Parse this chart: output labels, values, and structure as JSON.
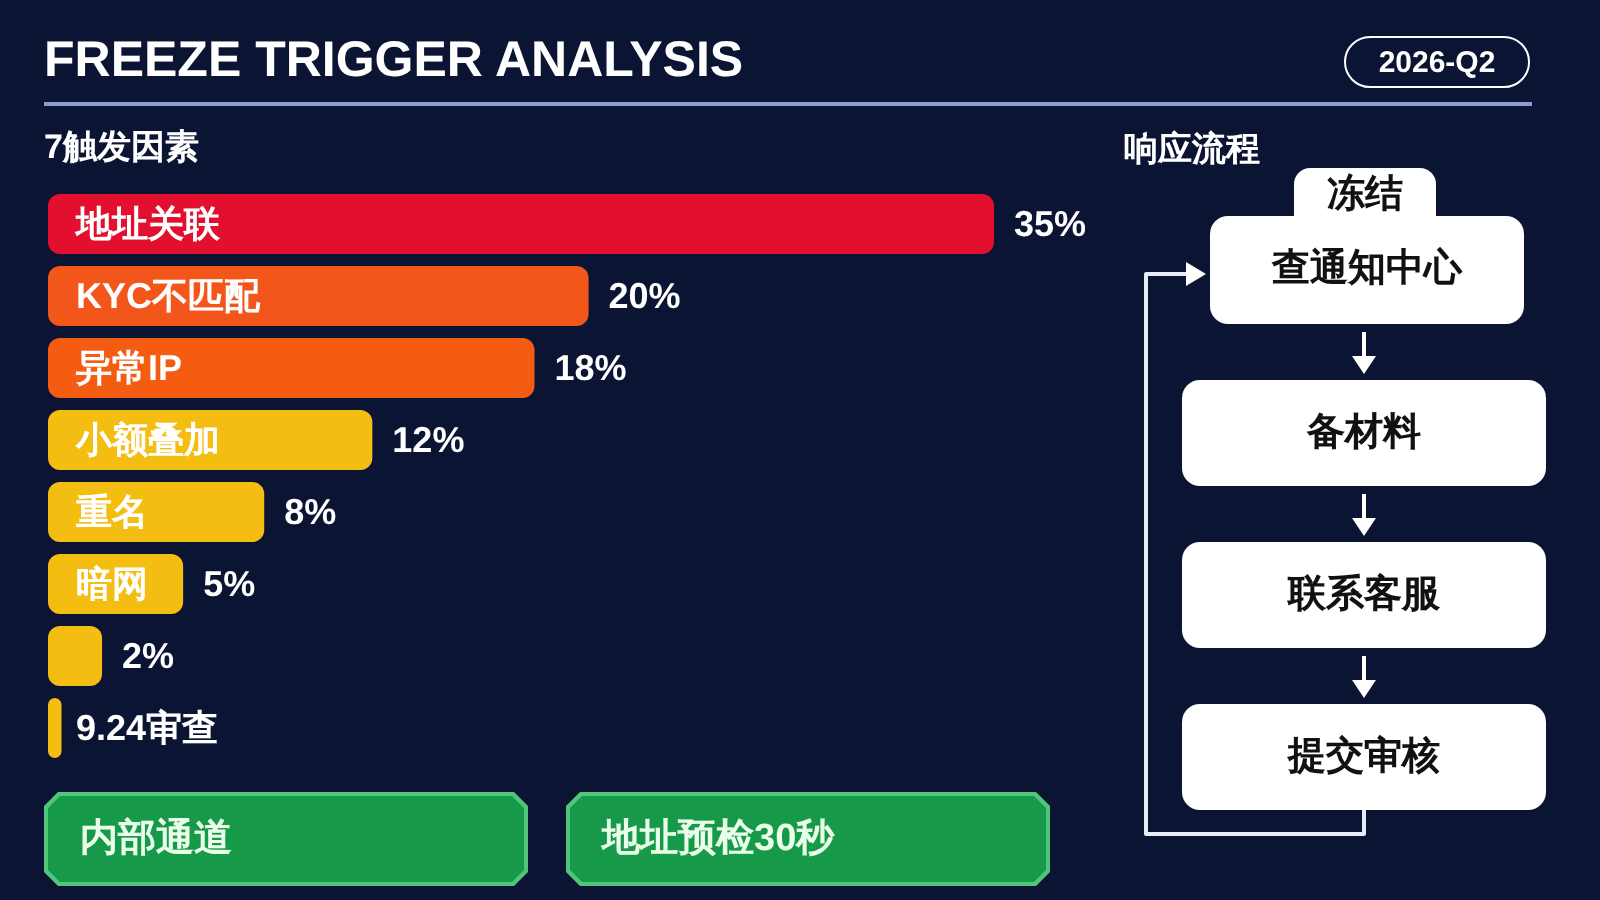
{
  "chart_data": [
    {
      "type": "bar",
      "orientation": "horizontal",
      "title": "FREEZE TRIGGER ANALYSIS",
      "ylabel": "7触发因素",
      "categories": [
        "地址关联",
        "KYC不匹配",
        "异常IP",
        "小额叠加",
        "重名",
        "暗网",
        null,
        "9.24审查"
      ],
      "values": [
        35,
        20,
        18,
        12,
        8,
        5,
        2,
        0.5
      ],
      "value_labels": [
        "35%",
        "20%",
        "18%",
        "12%",
        "8%",
        "5%",
        "2%",
        null
      ],
      "colors": [
        "#e2102e",
        "#f2561a",
        "#f45c12",
        "#f3bd12",
        "#f3bd12",
        "#f3bd12",
        "#f3bd12",
        "#f3bd12"
      ],
      "tick_labels": "y",
      "annotations": [
        "内部通道",
        "地址预检30秒"
      ]
    },
    {
      "type": "other",
      "title": "响应流程",
      "subtitle": "2026-Q2",
      "annotations": [
        "冻结",
        "查通知中心",
        "备材料",
        "联系客服",
        "提交审核"
      ]
    }
  ]
}
